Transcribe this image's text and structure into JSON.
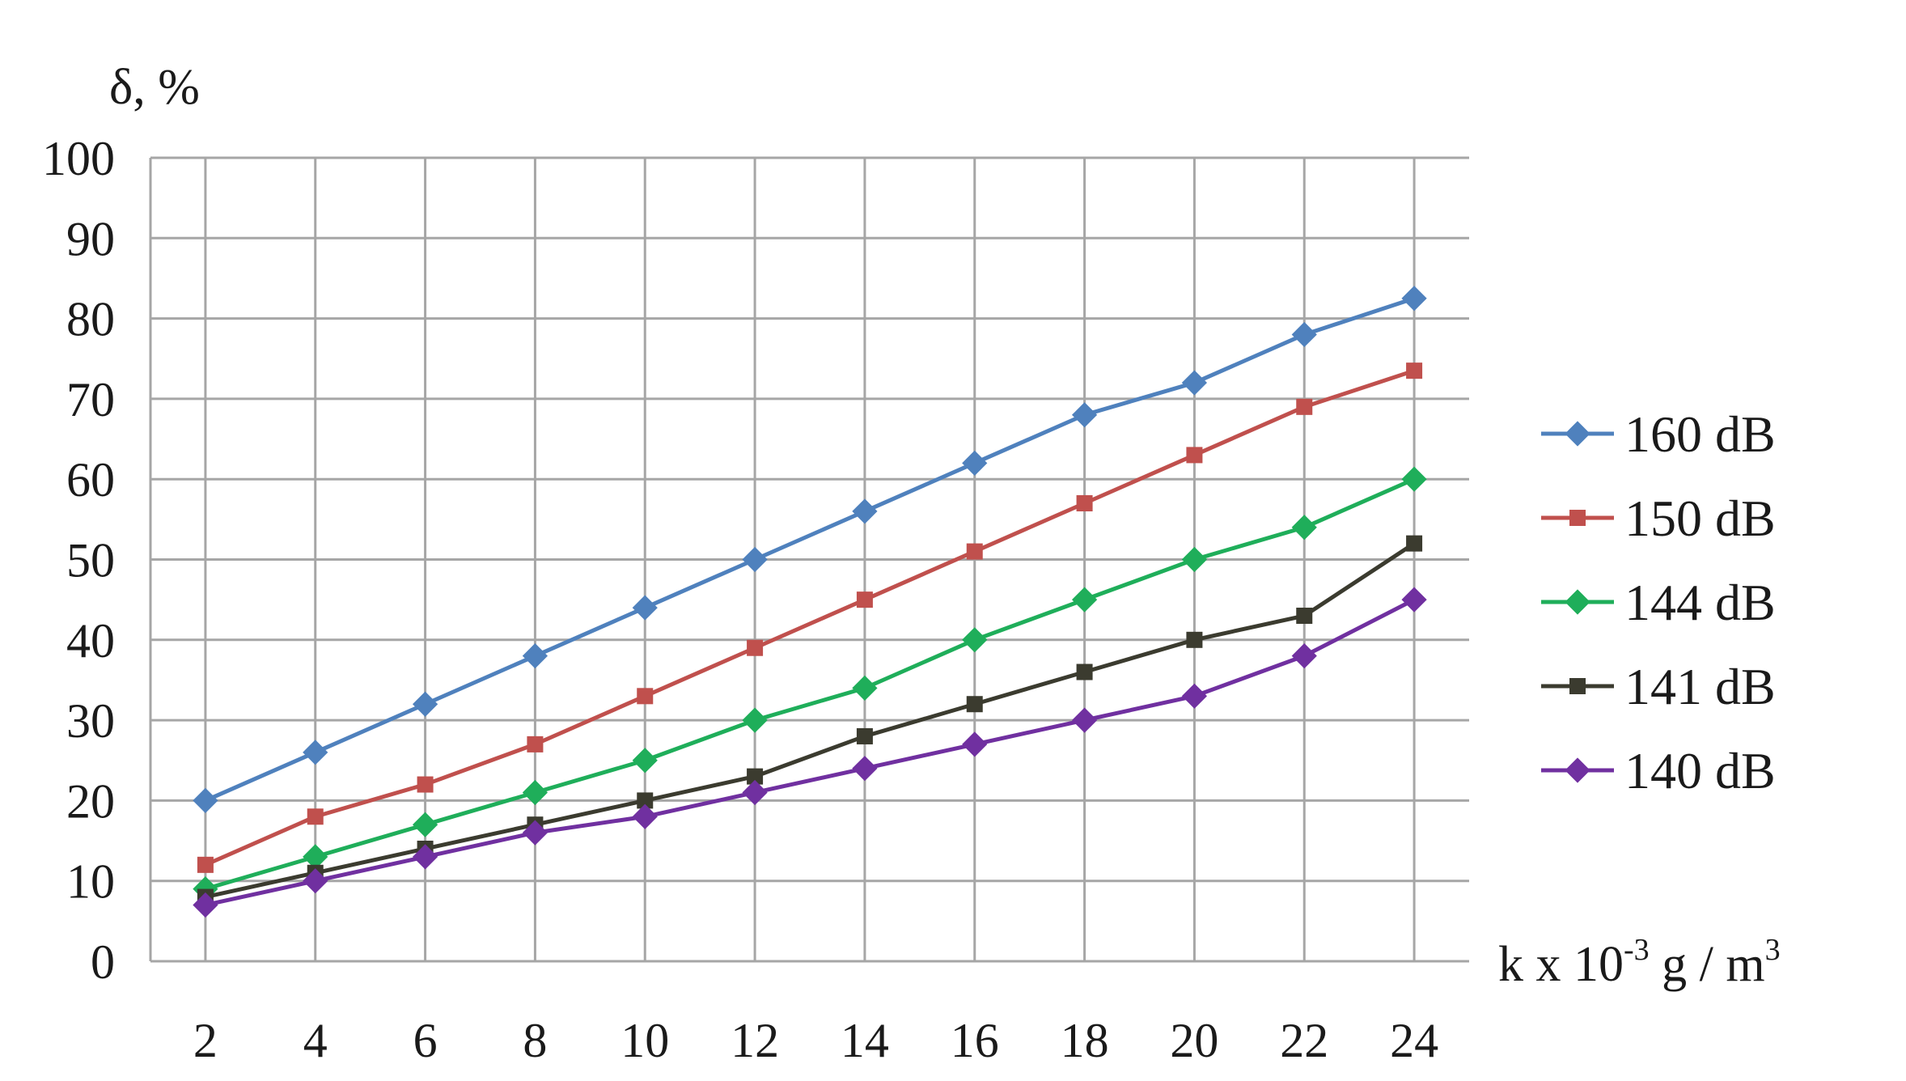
{
  "chart_data": {
    "type": "line",
    "title": "",
    "ylabel": "δ, %",
    "xlabel_main": "k x 10",
    "xlabel_exp": "-3",
    "xlabel_unit": " g / m",
    "xlabel_unit_exp": "3",
    "x": [
      2,
      4,
      6,
      8,
      10,
      12,
      14,
      16,
      18,
      20,
      22,
      24
    ],
    "ylim": [
      0,
      100
    ],
    "yticks": [
      0,
      10,
      20,
      30,
      40,
      50,
      60,
      70,
      80,
      90,
      100
    ],
    "grid": true,
    "legend_position": "right",
    "series": [
      {
        "name": "160 dB",
        "color": "#4f81bd",
        "marker": "diamond",
        "values": [
          20,
          26,
          32,
          38,
          44,
          50,
          56,
          62,
          68,
          72,
          78,
          82.5
        ]
      },
      {
        "name": "150 dB",
        "color": "#c0504d",
        "marker": "square",
        "values": [
          12,
          18,
          22,
          27,
          33,
          39,
          45,
          51,
          57,
          63,
          69,
          73.5
        ]
      },
      {
        "name": "144 dB",
        "color": "#1fae5a",
        "marker": "diamond",
        "values": [
          9,
          13,
          17,
          21,
          25,
          30,
          34,
          40,
          45,
          50,
          54,
          60
        ]
      },
      {
        "name": "141 dB",
        "color": "#3b3b2f",
        "marker": "square",
        "values": [
          8,
          11,
          14,
          17,
          20,
          23,
          28,
          32,
          36,
          40,
          43,
          52
        ]
      },
      {
        "name": "140 dB",
        "color": "#7030a0",
        "marker": "diamond",
        "values": [
          7,
          10,
          13,
          16,
          18,
          21,
          24,
          27,
          30,
          33,
          38,
          45
        ]
      }
    ]
  }
}
